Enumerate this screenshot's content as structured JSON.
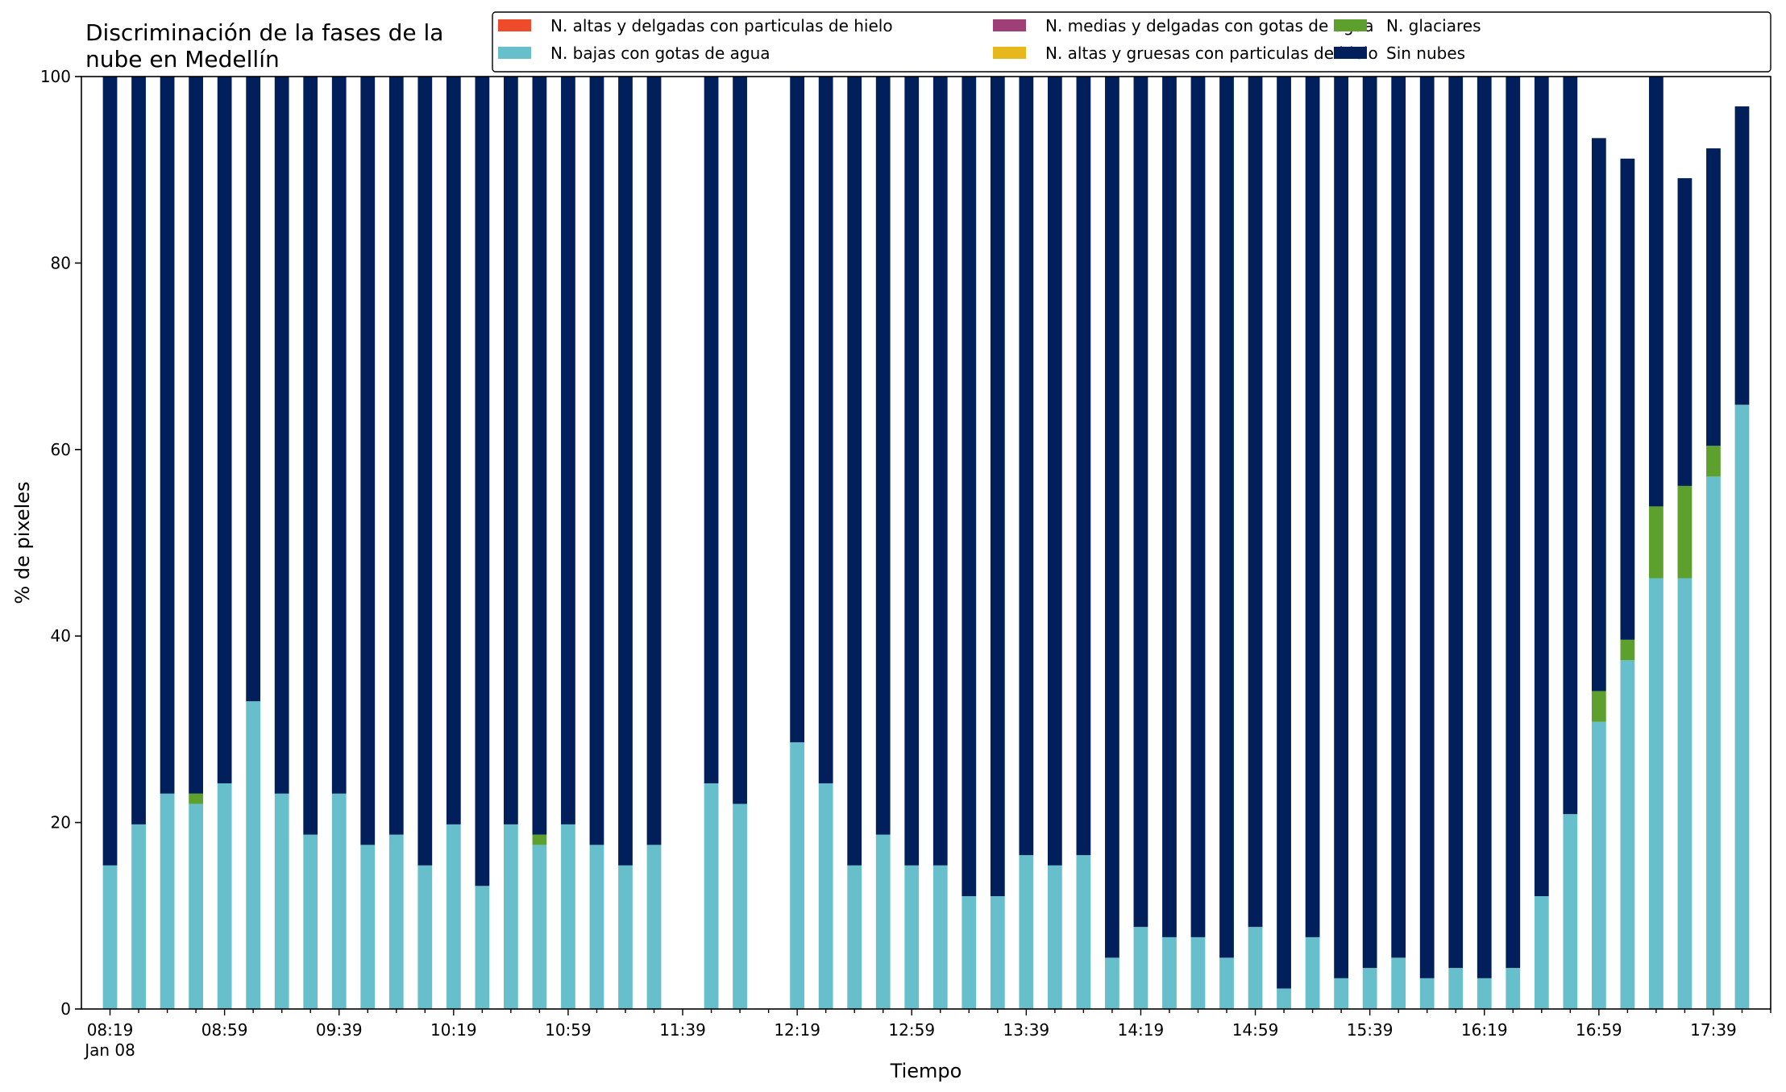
{
  "chart_data": {
    "type": "bar",
    "stacked": true,
    "title": "Discriminación de la fases de la\nnube en Medellín",
    "xlabel": "Tiempo",
    "ylabel": "% de pixeles",
    "ylim": [
      0,
      100
    ],
    "yticks": [
      0,
      20,
      40,
      60,
      80,
      100
    ],
    "grid": false,
    "legend_position": "top-right",
    "categories": [
      "08:19",
      "08:29",
      "08:39",
      "08:49",
      "08:59",
      "09:09",
      "09:19",
      "09:29",
      "09:39",
      "09:49",
      "09:59",
      "10:09",
      "10:19",
      "10:29",
      "10:39",
      "10:49",
      "10:59",
      "11:09",
      "11:19",
      "11:29",
      "11:39",
      "11:49",
      "11:59",
      "12:09",
      "12:19",
      "12:29",
      "12:39",
      "12:49",
      "12:59",
      "13:09",
      "13:19",
      "13:29",
      "13:39",
      "13:49",
      "13:59",
      "14:09",
      "14:19",
      "14:29",
      "14:39",
      "14:49",
      "14:59",
      "15:09",
      "15:19",
      "15:29",
      "15:39",
      "15:49",
      "15:59",
      "16:09",
      "16:19",
      "16:29",
      "16:39",
      "16:49",
      "16:59",
      "17:09",
      "17:19",
      "17:29",
      "17:39",
      "17:49"
    ],
    "x_tick_labels": [
      "08:19",
      "08:59",
      "09:39",
      "10:19",
      "10:59",
      "11:39",
      "12:19",
      "12:59",
      "13:39",
      "14:19",
      "14:59",
      "15:39",
      "16:19",
      "16:59",
      "17:39"
    ],
    "x_tick_sublabel": "Jan 08",
    "series": [
      {
        "name": "N. altas y delgadas con particulas de hielo",
        "color": "#ee4b2b",
        "values": [
          0,
          0,
          0,
          0,
          0,
          0,
          0,
          0,
          0,
          0,
          0,
          0,
          0,
          0,
          0,
          0,
          0,
          0,
          0,
          0,
          0,
          0,
          0,
          0,
          0,
          0,
          0,
          0,
          0,
          0,
          0,
          0,
          0,
          0,
          0,
          0,
          0,
          0,
          0,
          0,
          0,
          0,
          0,
          0,
          0,
          0,
          0,
          0,
          0,
          0,
          0,
          0,
          0,
          0,
          0,
          0,
          0,
          0
        ]
      },
      {
        "name": "N. altas y gruesas con particulas de hielo",
        "color": "#e6b81c",
        "values": [
          0,
          0,
          0,
          0,
          0,
          0,
          0,
          0,
          0,
          0,
          0,
          0,
          0,
          0,
          0,
          0,
          0,
          0,
          0,
          0,
          0,
          0,
          0,
          0,
          0,
          0,
          0,
          0,
          0,
          0,
          0,
          0,
          0,
          0,
          0,
          0,
          0,
          0,
          0,
          0,
          0,
          0,
          0,
          0,
          0,
          0,
          0,
          0,
          0,
          0,
          0,
          0,
          0,
          0,
          0,
          0,
          0,
          0
        ]
      },
      {
        "name": "N. bajas con gotas de agua",
        "color": "#66bfcb",
        "values": [
          15.4,
          19.8,
          23.1,
          22.0,
          24.2,
          33.0,
          23.1,
          18.7,
          23.1,
          17.6,
          18.7,
          15.4,
          19.8,
          13.2,
          19.8,
          17.6,
          19.8,
          17.6,
          15.4,
          17.6,
          0,
          24.2,
          22.0,
          0,
          28.6,
          24.2,
          15.4,
          18.7,
          15.4,
          15.4,
          12.1,
          12.1,
          16.5,
          15.4,
          16.5,
          5.5,
          8.8,
          7.7,
          7.7,
          5.5,
          8.8,
          2.2,
          7.7,
          3.3,
          4.4,
          5.5,
          3.3,
          4.4,
          3.3,
          4.4,
          12.1,
          20.9,
          30.8,
          37.4,
          46.2,
          46.2,
          57.1,
          64.8
        ]
      },
      {
        "name": "N. glaciares",
        "color": "#5ea02e",
        "values": [
          0,
          0,
          0,
          1.1,
          0,
          0,
          0,
          0,
          0,
          0,
          0,
          0,
          0,
          0,
          0,
          1.1,
          0,
          0,
          0,
          0,
          0,
          0,
          0,
          0,
          0,
          0,
          0,
          0,
          0,
          0,
          0,
          0,
          0,
          0,
          0,
          0,
          0,
          0,
          0,
          0,
          0,
          0,
          0,
          0,
          0,
          0,
          0,
          0,
          0,
          0,
          0,
          0,
          3.3,
          2.2,
          7.7,
          9.9,
          3.3,
          0
        ]
      },
      {
        "name": "N. medias y delgadas con gotas de agua",
        "color": "#a03f77",
        "values": [
          0,
          0,
          0,
          0,
          0,
          0,
          0,
          0,
          0,
          0,
          0,
          0,
          0,
          0,
          0,
          0,
          0,
          0,
          0,
          0,
          0,
          0,
          0,
          0,
          0,
          0,
          0,
          0,
          0,
          0,
          0,
          0,
          0,
          0,
          0,
          0,
          0,
          0,
          0,
          0,
          0,
          0,
          0,
          0,
          0,
          0,
          0,
          0,
          0,
          0,
          0,
          0,
          0,
          0,
          0,
          0,
          0,
          0
        ]
      },
      {
        "name": "Sin nubes",
        "color": "#001f5b",
        "values": [
          84.6,
          80.2,
          76.9,
          76.9,
          75.8,
          67.0,
          76.9,
          81.3,
          76.9,
          82.4,
          81.3,
          84.6,
          80.2,
          86.8,
          80.2,
          81.3,
          80.2,
          82.4,
          84.6,
          82.4,
          0,
          75.8,
          78.0,
          0,
          71.4,
          75.8,
          84.6,
          81.3,
          84.6,
          84.6,
          87.9,
          87.9,
          83.5,
          84.6,
          83.5,
          94.5,
          91.2,
          92.3,
          92.3,
          94.5,
          91.2,
          97.8,
          92.3,
          96.7,
          95.6,
          94.5,
          96.7,
          95.6,
          96.7,
          95.6,
          87.9,
          79.1,
          59.3,
          51.6,
          46.1,
          33.0,
          31.9,
          32.0
        ]
      }
    ],
    "legend_order": [
      "N. altas y delgadas con particulas de hielo",
      "N. bajas con gotas de agua",
      "N. medias y delgadas con gotas de agua",
      "N. altas y gruesas con particulas de hielo",
      "N. glaciares",
      "Sin nubes"
    ]
  }
}
